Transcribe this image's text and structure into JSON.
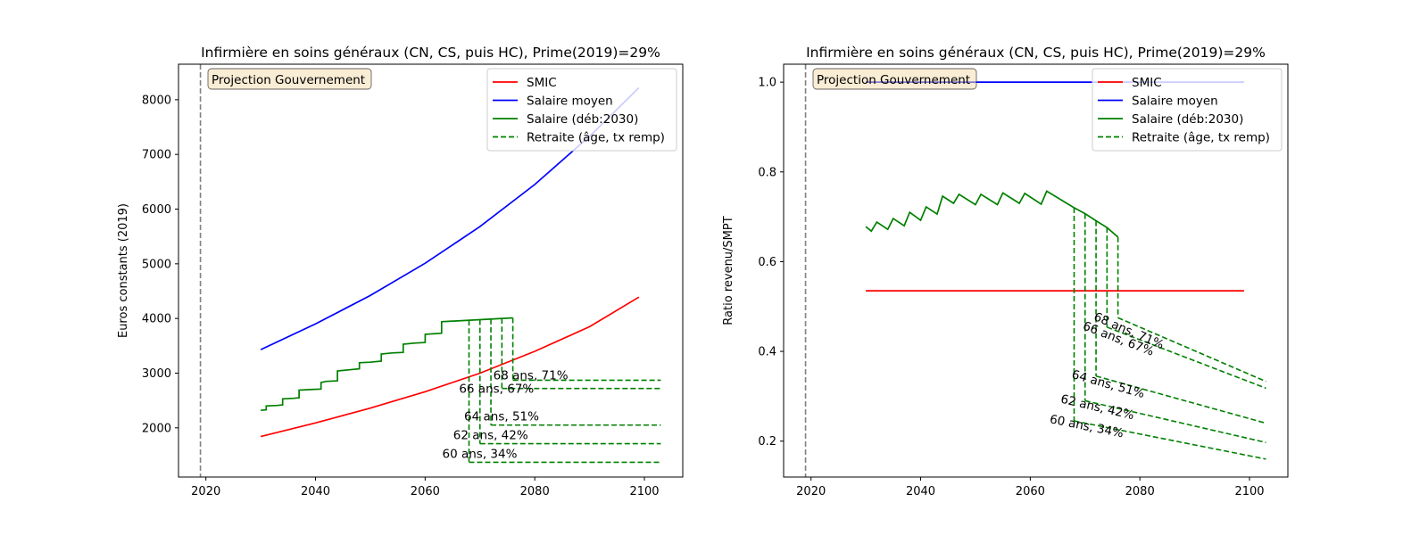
{
  "colors": {
    "smic": "#ff0000",
    "salaire_moyen": "#0000ff",
    "salaire": "#008000",
    "retraite": "#008000",
    "vline": "#808080",
    "annotation_fill": "#f5deb3",
    "axes": "#000000",
    "background": "#ffffff"
  },
  "chart_data": [
    {
      "type": "line",
      "title": "Infirmière en soins généraux (CN, CS, puis HC), Prime(2019)=29%",
      "xlabel": "",
      "ylabel": "Euros constants (2019)",
      "xlim": [
        2015,
        2107
      ],
      "ylim": [
        1100,
        8650
      ],
      "xticks": [
        2020,
        2040,
        2060,
        2080,
        2100
      ],
      "yticks": [
        2000,
        3000,
        4000,
        5000,
        6000,
        7000,
        8000
      ],
      "grid": false,
      "legend_position": "top-right",
      "legend": [
        "SMIC",
        "Salaire moyen",
        "Salaire (déb:2030)",
        "Retraite (âge, tx remp)"
      ],
      "annotation_box": "Projection Gouvernement",
      "vline_x": 2019,
      "series": [
        {
          "name": "SMIC",
          "key": "smic",
          "style": "solid",
          "x": [
            2030,
            2040,
            2050,
            2060,
            2070,
            2080,
            2090,
            2099
          ],
          "y": [
            1840,
            2090,
            2360,
            2660,
            3000,
            3400,
            3850,
            4390
          ]
        },
        {
          "name": "Salaire moyen",
          "key": "salaire_moyen",
          "style": "solid",
          "x": [
            2030,
            2040,
            2050,
            2060,
            2070,
            2080,
            2090,
            2099
          ],
          "y": [
            3430,
            3900,
            4420,
            5010,
            5680,
            6450,
            7330,
            8220
          ]
        },
        {
          "name": "Salaire (déb:2030)",
          "key": "salaire",
          "style": "solid",
          "x": [
            2030,
            2031,
            2031,
            2033,
            2033,
            2034,
            2034,
            2036,
            2036,
            2037,
            2037,
            2039,
            2039,
            2041,
            2041,
            2042,
            2042,
            2044,
            2044,
            2046,
            2046,
            2048,
            2048,
            2050,
            2050,
            2052,
            2052,
            2054,
            2054,
            2056,
            2056,
            2058,
            2058,
            2060,
            2060,
            2063,
            2063,
            2076
          ],
          "y": [
            2320,
            2330,
            2400,
            2410,
            2410,
            2420,
            2530,
            2540,
            2540,
            2550,
            2690,
            2700,
            2700,
            2710,
            2830,
            2850,
            2850,
            2860,
            3040,
            3060,
            3060,
            3080,
            3190,
            3200,
            3200,
            3220,
            3350,
            3370,
            3370,
            3380,
            3530,
            3550,
            3550,
            3560,
            3710,
            3730,
            3940,
            4010
          ]
        }
      ],
      "retirements": [
        {
          "label": "60 ans, 34%",
          "start_year": 2068,
          "level": 1370
        },
        {
          "label": "62 ans, 42%",
          "start_year": 2070,
          "level": 1710
        },
        {
          "label": "64 ans, 51%",
          "start_year": 2072,
          "level": 2050
        },
        {
          "label": "66 ans, 67%",
          "start_year": 2074,
          "level": 2720
        },
        {
          "label": "68 ans, 71%",
          "start_year": 2076,
          "level": 2870
        }
      ],
      "retirement_end_year": 2103
    },
    {
      "type": "line",
      "title": "Infirmière en soins généraux (CN, CS, puis HC), Prime(2019)=29%",
      "xlabel": "",
      "ylabel": "Ratio revenu/SMPT",
      "xlim": [
        2015,
        2107
      ],
      "ylim": [
        0.12,
        1.04
      ],
      "xticks": [
        2020,
        2040,
        2060,
        2080,
        2100
      ],
      "yticks": [
        0.2,
        0.4,
        0.6,
        0.8,
        1.0
      ],
      "grid": false,
      "legend_position": "top-right",
      "legend": [
        "SMIC",
        "Salaire moyen",
        "Salaire (déb:2030)",
        "Retraite (âge, tx remp)"
      ],
      "annotation_box": "Projection Gouvernement",
      "vline_x": 2019,
      "series": [
        {
          "name": "SMIC",
          "key": "smic",
          "style": "solid",
          "x": [
            2030,
            2099
          ],
          "y": [
            0.535,
            0.535
          ]
        },
        {
          "name": "Salaire moyen",
          "key": "salaire_moyen",
          "style": "solid",
          "x": [
            2030,
            2099
          ],
          "y": [
            1.0,
            1.0
          ]
        },
        {
          "name": "Salaire (déb:2030)",
          "key": "salaire",
          "style": "solid",
          "x": [
            2030,
            2031,
            2032,
            2034,
            2035,
            2037,
            2038,
            2040,
            2041,
            2043,
            2044,
            2046,
            2047,
            2050,
            2051,
            2054,
            2055,
            2058,
            2059,
            2062,
            2063,
            2068,
            2070,
            2072,
            2074,
            2076
          ],
          "y": [
            0.678,
            0.668,
            0.688,
            0.672,
            0.696,
            0.68,
            0.71,
            0.692,
            0.722,
            0.706,
            0.746,
            0.73,
            0.75,
            0.727,
            0.75,
            0.727,
            0.753,
            0.73,
            0.752,
            0.728,
            0.757,
            0.72,
            0.707,
            0.691,
            0.676,
            0.655
          ]
        }
      ],
      "retirements": [
        {
          "label": "60 ans, 34%",
          "start_year": 2068,
          "start": 0.245,
          "end": 0.16
        },
        {
          "label": "62 ans, 42%",
          "start_year": 2070,
          "start": 0.29,
          "end": 0.197
        },
        {
          "label": "64 ans, 51%",
          "start_year": 2072,
          "start": 0.345,
          "end": 0.24
        },
        {
          "label": "66 ans, 67%",
          "start_year": 2074,
          "start": 0.454,
          "end": 0.318
        },
        {
          "label": "68 ans, 71%",
          "start_year": 2076,
          "start": 0.475,
          "end": 0.333
        }
      ],
      "retirement_end_year": 2103
    }
  ]
}
